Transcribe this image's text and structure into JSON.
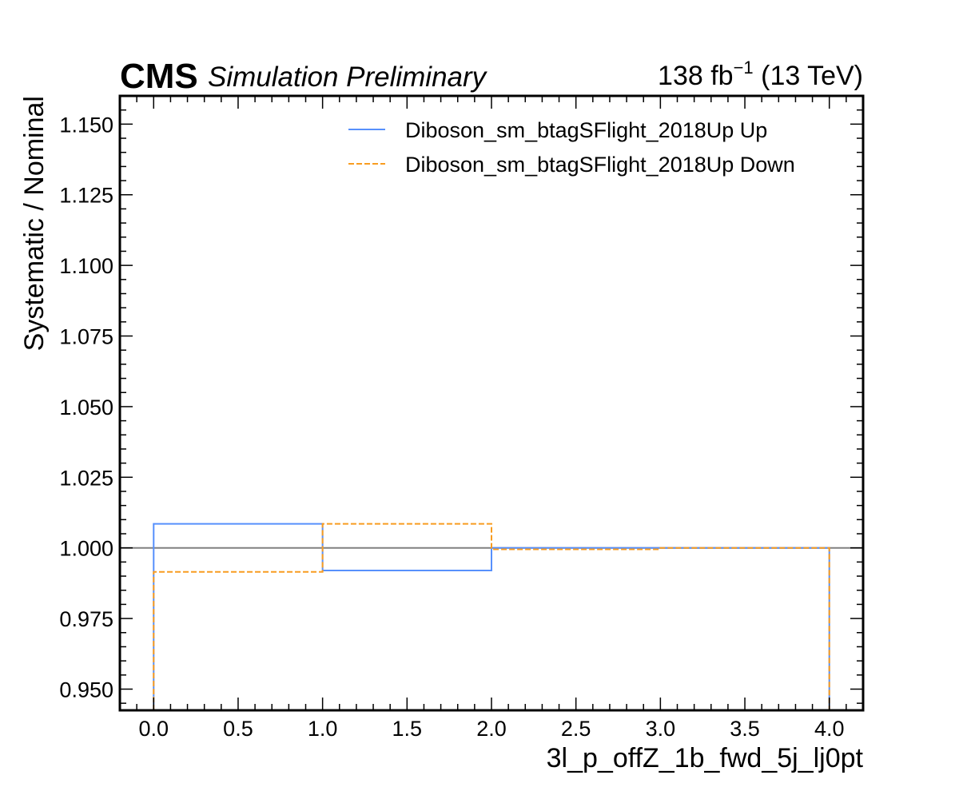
{
  "header": {
    "cms": "CMS",
    "sim": "Simulation Preliminary",
    "lumi_value": "138 fb",
    "lumi_exp": "−1",
    "lumi_energy": " (13 TeV)"
  },
  "chart_data": {
    "type": "line",
    "style": "step",
    "xlabel": "3l_p_offZ_1b_fwd_5j_lj0pt",
    "ylabel": "Systematic / Nominal",
    "xlim": [
      -0.2,
      4.2
    ],
    "ylim": [
      0.9425,
      1.16
    ],
    "xticks": [
      0.0,
      0.5,
      1.0,
      1.5,
      2.0,
      2.5,
      3.0,
      3.5,
      4.0
    ],
    "xtick_labels": [
      "0.0",
      "0.5",
      "1.0",
      "1.5",
      "2.0",
      "2.5",
      "3.0",
      "3.5",
      "4.0"
    ],
    "yticks": [
      0.95,
      0.975,
      1.0,
      1.025,
      1.05,
      1.075,
      1.1,
      1.125,
      1.15
    ],
    "ytick_labels": [
      "0.950",
      "0.975",
      "1.000",
      "1.025",
      "1.050",
      "1.075",
      "1.100",
      "1.125",
      "1.150"
    ],
    "bin_edges": [
      0,
      1,
      2,
      3,
      4
    ],
    "reference_line": 1.0,
    "legend_position": "top-right",
    "series": [
      {
        "name": "Diboson_sm_btagSFlight_2018Up Up",
        "color": "#5790fc",
        "dash": "solid",
        "values": [
          1.0085,
          0.992,
          1.0,
          1.0
        ]
      },
      {
        "name": "Diboson_sm_btagSFlight_2018Up Down",
        "color": "#f89c20",
        "dash": "dashed",
        "values": [
          0.9915,
          1.0085,
          0.9995,
          1.0
        ]
      }
    ],
    "reference_color": "#808080"
  }
}
